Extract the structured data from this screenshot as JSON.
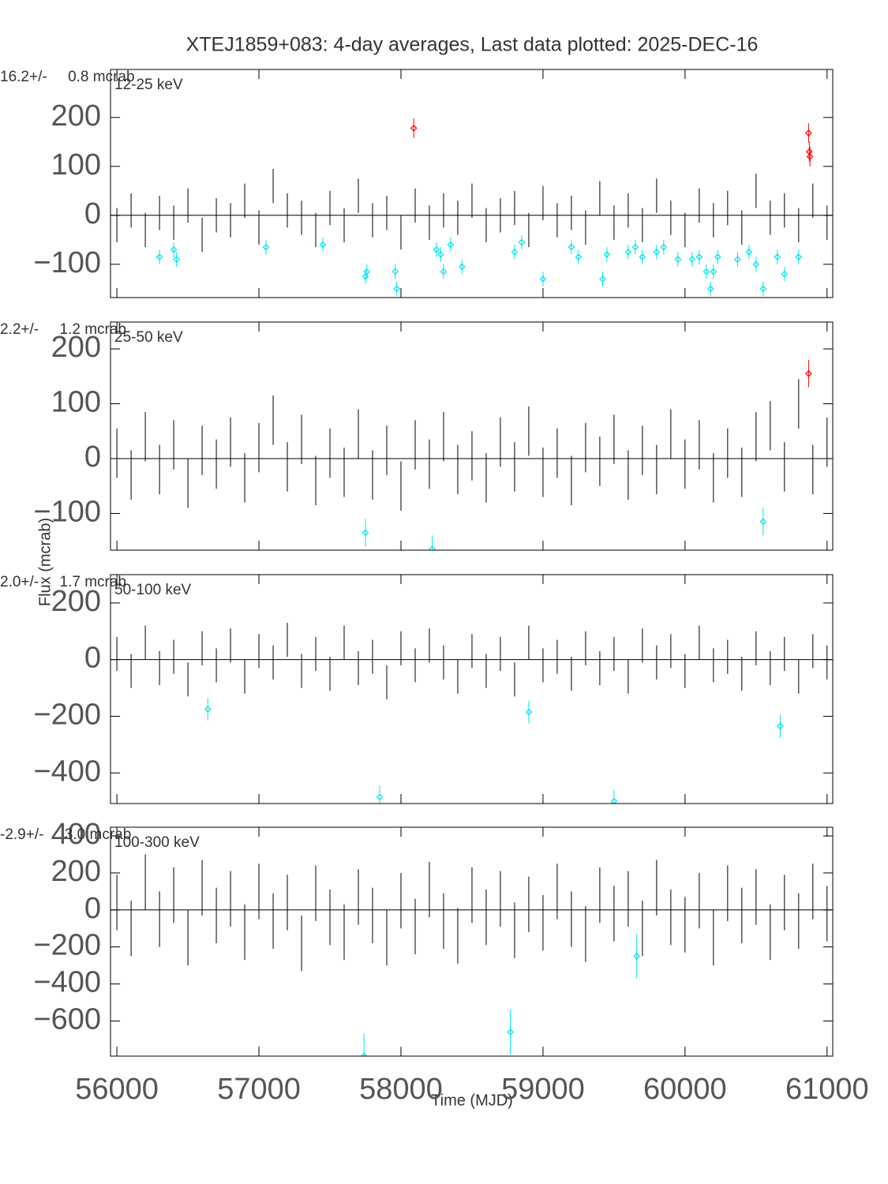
{
  "title": "XTEJ1859+083:  4-day averages,  Last data plotted: 2025-DEC-16",
  "xlabel": "Time (MJD)",
  "ylabel": "Flux (mcrab)",
  "chart_data": [
    {
      "type": "errorbar",
      "stats": "16.2+/-     0.8 mcrab",
      "label": "12-25 keV",
      "xlim": [
        55955,
        61040
      ],
      "xticks": [
        56000,
        57000,
        58000,
        59000,
        60000,
        61000
      ],
      "xtick_labels": false,
      "ylim": [
        -168,
        298
      ],
      "yticks": [
        {
          "value": -100,
          "label": "−100"
        },
        0,
        100,
        200
      ],
      "series": [
        {
          "color": "#000000",
          "marker": "none",
          "error": 35,
          "x": [
            56000,
            56100,
            56200,
            56300,
            56400,
            56500,
            56600,
            56700,
            56800,
            56900,
            57000,
            57100,
            57200,
            57300,
            57400,
            57500,
            57600,
            57700,
            57800,
            57900,
            58000,
            58100,
            58200,
            58300,
            58400,
            58500,
            58600,
            58700,
            58800,
            58900,
            59000,
            59100,
            59200,
            59300,
            59400,
            59500,
            59600,
            59700,
            59800,
            59900,
            60000,
            60100,
            60200,
            60300,
            60400,
            60500,
            60600,
            60700,
            60800,
            60900,
            61000
          ],
          "values": [
            -20,
            10,
            -30,
            5,
            -15,
            20,
            -40,
            0,
            -10,
            30,
            -25,
            60,
            10,
            -5,
            -30,
            15,
            -20,
            40,
            -10,
            5,
            -35,
            20,
            -15,
            10,
            -5,
            30,
            -20,
            0,
            15,
            -30,
            25,
            -10,
            5,
            -25,
            35,
            -15,
            10,
            -20,
            40,
            -5,
            -30,
            20,
            -10,
            15,
            -25,
            50,
            -5,
            10,
            -20,
            30,
            -15
          ]
        },
        {
          "color": "#ff0000",
          "marker": "diamond",
          "error": 20,
          "x": [
            58090,
            60870,
            60875,
            60880
          ],
          "values": [
            178,
            168,
            130,
            120
          ]
        },
        {
          "color": "#00e5ee",
          "marker": "diamond",
          "error": 15,
          "x": [
            56300,
            56400,
            56420,
            57050,
            57450,
            57750,
            57760,
            57960,
            57970,
            58250,
            58280,
            58300,
            58350,
            58430,
            58800,
            58850,
            59000,
            59200,
            59250,
            59420,
            59450,
            59600,
            59650,
            59700,
            59800,
            59850,
            59950,
            60050,
            60100,
            60150,
            60180,
            60200,
            60230,
            60370,
            60450,
            60500,
            60550,
            60650,
            60700,
            60800
          ],
          "values": [
            -85,
            -70,
            -90,
            -65,
            -60,
            -125,
            -115,
            -115,
            -150,
            -70,
            -80,
            -115,
            -60,
            -105,
            -75,
            -55,
            -130,
            -65,
            -85,
            -130,
            -80,
            -75,
            -65,
            -85,
            -75,
            -65,
            -90,
            -90,
            -85,
            -115,
            -150,
            -115,
            -85,
            -90,
            -75,
            -100,
            -150,
            -85,
            -120,
            -85
          ]
        }
      ]
    },
    {
      "type": "errorbar",
      "stats": "2.2+/-     1.2 mcrab",
      "label": "25-50 keV",
      "xlim": [
        55955,
        61040
      ],
      "xticks": [
        56000,
        57000,
        58000,
        59000,
        60000,
        61000
      ],
      "xtick_labels": false,
      "ylim": [
        -167,
        249
      ],
      "yticks": [
        {
          "value": -100,
          "label": "−100"
        },
        0,
        100,
        200
      ],
      "series": [
        {
          "color": "#000000",
          "marker": "none",
          "error": 45,
          "x": [
            56000,
            56100,
            56200,
            56300,
            56400,
            56500,
            56600,
            56700,
            56800,
            56900,
            57000,
            57100,
            57200,
            57300,
            57400,
            57500,
            57600,
            57700,
            57800,
            57900,
            58000,
            58100,
            58200,
            58300,
            58400,
            58500,
            58600,
            58700,
            58800,
            58900,
            59000,
            59100,
            59200,
            59300,
            59400,
            59500,
            59600,
            59700,
            59800,
            59900,
            60000,
            60100,
            60200,
            60300,
            60400,
            60500,
            60600,
            60700,
            60800,
            60900,
            61000
          ],
          "values": [
            10,
            -30,
            40,
            -20,
            25,
            -45,
            15,
            -10,
            30,
            -35,
            20,
            70,
            -15,
            35,
            -40,
            10,
            -25,
            45,
            -30,
            15,
            -50,
            25,
            -10,
            40,
            -20,
            5,
            -35,
            30,
            -15,
            50,
            -25,
            10,
            -40,
            20,
            -5,
            35,
            -30,
            15,
            -20,
            45,
            -10,
            25,
            -35,
            10,
            -25,
            40,
            60,
            -15,
            100,
            -20,
            30
          ]
        },
        {
          "color": "#ff0000",
          "marker": "diamond",
          "error": 25,
          "x": [
            60870
          ],
          "values": [
            155
          ]
        },
        {
          "color": "#00e5ee",
          "marker": "diamond",
          "error": 25,
          "x": [
            57750,
            58220,
            60550
          ],
          "values": [
            -135,
            -165,
            -115
          ]
        }
      ]
    },
    {
      "type": "errorbar",
      "stats": "2.0+/-     1.7 mcrab",
      "label": "50-100 keV",
      "xlim": [
        55955,
        61040
      ],
      "xticks": [
        56000,
        57000,
        58000,
        59000,
        60000,
        61000
      ],
      "xtick_labels": false,
      "ylim": [
        -508,
        300
      ],
      "yticks": [
        {
          "value": -400,
          "label": "−400"
        },
        {
          "value": -200,
          "label": "−200"
        },
        0,
        200
      ],
      "series": [
        {
          "color": "#000000",
          "marker": "none",
          "error": 60,
          "x": [
            56000,
            56100,
            56200,
            56300,
            56400,
            56500,
            56600,
            56700,
            56800,
            56900,
            57000,
            57100,
            57200,
            57300,
            57400,
            57500,
            57600,
            57700,
            57800,
            57900,
            58000,
            58100,
            58200,
            58300,
            58400,
            58500,
            58600,
            58700,
            58800,
            58900,
            59000,
            59100,
            59200,
            59300,
            59400,
            59500,
            59600,
            59700,
            59800,
            59900,
            60000,
            60100,
            60200,
            60300,
            60400,
            60500,
            60600,
            60700,
            60800,
            60900,
            61000
          ],
          "values": [
            20,
            -40,
            60,
            -30,
            10,
            -70,
            40,
            -20,
            50,
            -60,
            30,
            -10,
            70,
            -40,
            20,
            -50,
            60,
            -30,
            10,
            -80,
            40,
            -20,
            50,
            -10,
            -60,
            30,
            -40,
            20,
            -70,
            60,
            -20,
            10,
            -50,
            40,
            -30,
            20,
            -60,
            50,
            -10,
            30,
            -40,
            60,
            -20,
            10,
            -50,
            40,
            -30,
            20,
            -60,
            30,
            -10
          ]
        },
        {
          "color": "#00e5ee",
          "marker": "diamond",
          "error": 40,
          "x": [
            56640,
            57850,
            58900,
            59500,
            60670
          ],
          "values": [
            -175,
            -485,
            -185,
            -500,
            -235
          ]
        }
      ]
    },
    {
      "type": "errorbar",
      "stats": "-2.9+/-     3.0 mcrab",
      "label": "100-300 keV",
      "xlim": [
        55955,
        61040
      ],
      "xticks": [
        56000,
        57000,
        58000,
        59000,
        60000,
        61000
      ],
      "xtick_labels": true,
      "ylim": [
        -790,
        447
      ],
      "yticks": [
        {
          "value": -600,
          "label": "−600"
        },
        {
          "value": -400,
          "label": "−400"
        },
        {
          "value": -200,
          "label": "−200"
        },
        0,
        200,
        400
      ],
      "series": [
        {
          "color": "#000000",
          "marker": "none",
          "error": 150,
          "x": [
            56000,
            56100,
            56200,
            56300,
            56400,
            56500,
            56600,
            56700,
            56800,
            56900,
            57000,
            57100,
            57200,
            57300,
            57400,
            57500,
            57600,
            57700,
            57800,
            57900,
            58000,
            58100,
            58200,
            58300,
            58400,
            58500,
            58600,
            58700,
            58800,
            58900,
            59000,
            59100,
            59200,
            59300,
            59400,
            59500,
            59600,
            59700,
            59800,
            59900,
            60000,
            60100,
            60200,
            60300,
            60400,
            60500,
            60600,
            60700,
            60800,
            60900,
            61000
          ],
          "values": [
            40,
            -100,
            150,
            -50,
            80,
            -150,
            120,
            -30,
            60,
            -120,
            100,
            -60,
            40,
            -180,
            90,
            -40,
            -120,
            70,
            -30,
            -150,
            50,
            -90,
            110,
            -60,
            -140,
            80,
            -40,
            60,
            -110,
            30,
            -70,
            100,
            -50,
            -130,
            80,
            -20,
            60,
            -100,
            120,
            -40,
            -80,
            50,
            -150,
            90,
            -30,
            70,
            -120,
            40,
            -60,
            100,
            -20
          ]
        },
        {
          "color": "#00e5ee",
          "marker": "diamond",
          "error": 120,
          "x": [
            57740,
            58770,
            59660
          ],
          "values": [
            -790,
            -660,
            -250
          ]
        }
      ]
    }
  ]
}
